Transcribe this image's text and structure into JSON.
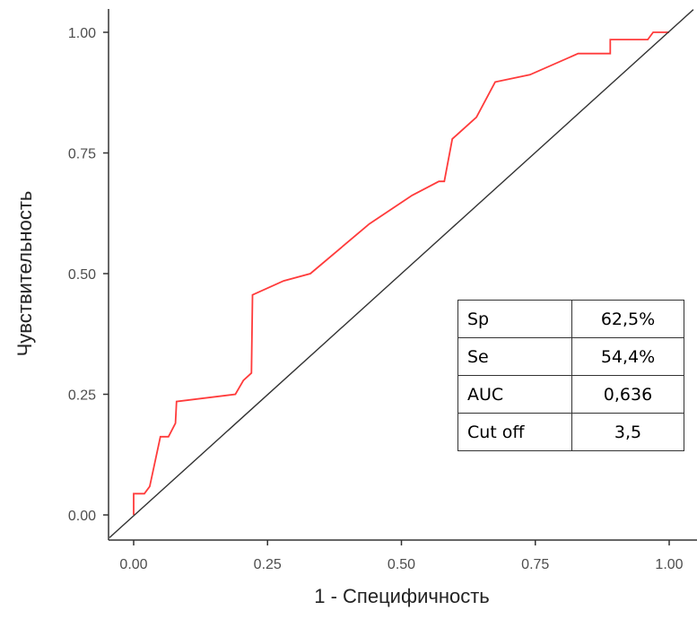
{
  "chart_data": {
    "type": "line",
    "title": "",
    "xlabel": "1 - Специфичность",
    "ylabel": "Чувствительность",
    "xlim": [
      0,
      1
    ],
    "ylim": [
      0,
      1
    ],
    "x_ticks": [
      "0.00",
      "0.25",
      "0.50",
      "0.75",
      "1.00"
    ],
    "y_ticks": [
      "0.00",
      "0.25",
      "0.50",
      "0.75",
      "1.00"
    ],
    "grid": false,
    "series": [
      {
        "color": "#ff3b3b",
        "points": [
          [
            0.0,
            0.0
          ],
          [
            0.0,
            0.044
          ],
          [
            0.02,
            0.044
          ],
          [
            0.03,
            0.059
          ],
          [
            0.05,
            0.162
          ],
          [
            0.065,
            0.162
          ],
          [
            0.078,
            0.19
          ],
          [
            0.08,
            0.235
          ],
          [
            0.19,
            0.25
          ],
          [
            0.205,
            0.279
          ],
          [
            0.22,
            0.294
          ],
          [
            0.222,
            0.456
          ],
          [
            0.28,
            0.485
          ],
          [
            0.33,
            0.5
          ],
          [
            0.44,
            0.603
          ],
          [
            0.52,
            0.662
          ],
          [
            0.57,
            0.691
          ],
          [
            0.58,
            0.691
          ],
          [
            0.595,
            0.779
          ],
          [
            0.64,
            0.824
          ],
          [
            0.675,
            0.897
          ],
          [
            0.74,
            0.912
          ],
          [
            0.83,
            0.956
          ],
          [
            0.89,
            0.956
          ],
          [
            0.89,
            0.985
          ],
          [
            0.96,
            0.985
          ],
          [
            0.97,
            1.0
          ],
          [
            1.0,
            1.0
          ]
        ]
      },
      {
        "color": "#333333",
        "points": [
          [
            -0.045,
            -0.047
          ],
          [
            1.045,
            1.047
          ]
        ]
      }
    ]
  },
  "stats_table": [
    {
      "key": "Sp",
      "value": "62,5%"
    },
    {
      "key": "Se",
      "value": "54,4%"
    },
    {
      "key": "AUC",
      "value": "0,636"
    },
    {
      "key": "Cut off",
      "value": "3,5"
    }
  ]
}
